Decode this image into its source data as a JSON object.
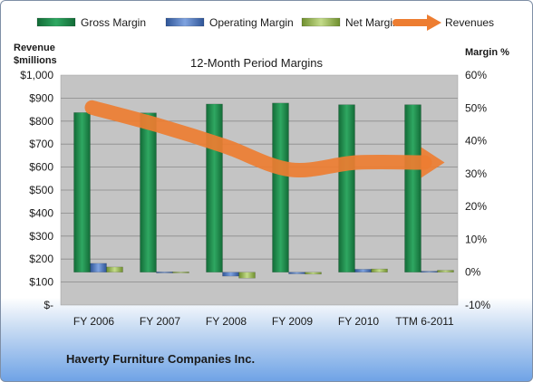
{
  "company": "Haverty Furniture Companies Inc.",
  "colors": {
    "gross": "#1e8a4a",
    "operating": "#4f78c4",
    "net": "#9bbb59",
    "revenue": "#ed7d31",
    "plot_bg": "#c4c4c4"
  },
  "chart_data": {
    "type": "bar",
    "title": "12-Month Period Margins",
    "ylabel_left": "Revenue $millions",
    "ylabel_right": "Margin %",
    "categories": [
      "FY 2006",
      "FY 2007",
      "FY 2008",
      "FY 2009",
      "FY 2010",
      "TTM 6-2011"
    ],
    "left_axis": {
      "min": 0,
      "max": 1000,
      "step": 100,
      "tick_labels": [
        "$-",
        "$100",
        "$200",
        "$300",
        "$400",
        "$500",
        "$600",
        "$700",
        "$800",
        "$900",
        "$1,000"
      ]
    },
    "right_axis": {
      "min": -10,
      "max": 60,
      "step": 10,
      "tick_labels": [
        "-10%",
        "0%",
        "10%",
        "20%",
        "30%",
        "40%",
        "50%",
        "60%"
      ]
    },
    "series": [
      {
        "name": "Gross Margin",
        "type": "bar",
        "axis": "right",
        "values": [
          48.6,
          48.5,
          51.2,
          51.5,
          51.0,
          51.0
        ]
      },
      {
        "name": "Operating Margin",
        "type": "bar",
        "axis": "right",
        "values": [
          2.7,
          0.1,
          -1.2,
          -0.5,
          0.9,
          0.3
        ]
      },
      {
        "name": "Net Margin",
        "type": "bar",
        "axis": "right",
        "values": [
          1.6,
          0.1,
          -1.8,
          -0.6,
          1.0,
          0.6
        ]
      },
      {
        "name": "Revenues",
        "type": "line",
        "axis": "left",
        "values": [
          859,
          782,
          692,
          589,
          620,
          620
        ]
      }
    ],
    "legend": "top",
    "grid": "horizontal"
  }
}
